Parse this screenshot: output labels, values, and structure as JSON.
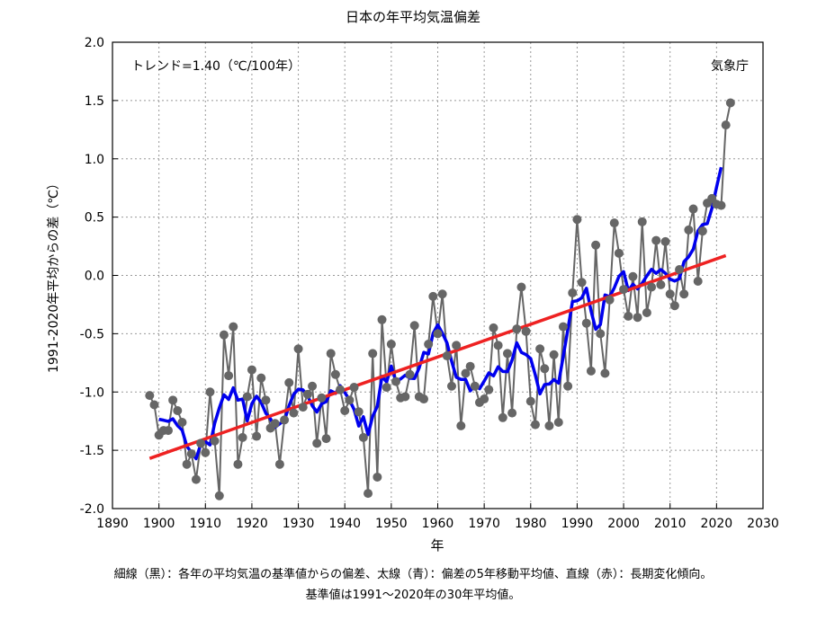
{
  "chart_data": {
    "type": "line",
    "title": "日本の年平均気温偏差",
    "xlabel": "年",
    "ylabel": "1991-2020年平均からの差（℃）",
    "xlim": [
      1890,
      2030
    ],
    "ylim": [
      -2.0,
      2.0
    ],
    "x_ticks": [
      "1890",
      "1900",
      "1910",
      "1920",
      "1930",
      "1940",
      "1950",
      "1960",
      "1970",
      "1980",
      "1990",
      "2000",
      "2010",
      "2020",
      "2030"
    ],
    "y_ticks": [
      "-2.0",
      "-1.5",
      "-1.0",
      "-0.5",
      "0.0",
      "0.5",
      "1.0",
      "1.5",
      "2.0"
    ],
    "grid": true,
    "annotations": {
      "trend": "トレンド=1.40（℃/100年）",
      "source": "気象庁"
    },
    "captions": [
      "細線（黒）：各年の平均気温の基準値からの偏差、太線（青）：偏差の5年移動平均値、直線（赤）：長期変化傾向。",
      "基準値は1991〜2020年の30年平均値。"
    ],
    "start_year": 1898,
    "series": [
      {
        "name": "年平均気温偏差",
        "color": "#666666",
        "values": [
          -1.03,
          -1.11,
          -1.37,
          -1.33,
          -1.33,
          -1.07,
          -1.16,
          -1.26,
          -1.62,
          -1.53,
          -1.75,
          -1.44,
          -1.52,
          -1.0,
          -1.42,
          -1.89,
          -0.51,
          -0.86,
          -0.44,
          -1.62,
          -1.39,
          -1.04,
          -0.81,
          -1.38,
          -0.88,
          -1.07,
          -1.31,
          -1.27,
          -1.62,
          -1.24,
          -0.92,
          -1.18,
          -0.63,
          -1.13,
          -1.02,
          -0.95,
          -1.44,
          -1.05,
          -1.4,
          -0.67,
          -0.85,
          -0.98,
          -1.16,
          -1.07,
          -0.96,
          -1.17,
          -1.39,
          -1.87,
          -0.67,
          -1.73,
          -0.38,
          -0.96,
          -0.59,
          -0.91,
          -1.05,
          -1.04,
          -0.85,
          -0.43,
          -1.04,
          -1.06,
          -0.59,
          -0.18,
          -0.5,
          -0.16,
          -0.69,
          -0.95,
          -0.6,
          -1.29,
          -0.84,
          -0.78,
          -0.95,
          -1.09,
          -1.06,
          -0.98,
          -0.45,
          -0.6,
          -1.22,
          -0.67,
          -1.18,
          -0.46,
          -0.1,
          -0.48,
          -1.08,
          -1.28,
          -0.63,
          -0.8,
          -1.29,
          -0.68,
          -1.26,
          -0.44,
          -0.95,
          -0.15,
          0.48,
          -0.06,
          -0.41,
          -0.82,
          0.26,
          -0.5,
          -0.84,
          -0.21,
          0.45,
          0.19,
          -0.12,
          -0.35,
          -0.01,
          -0.36,
          0.46,
          -0.32,
          -0.1,
          0.3,
          -0.08,
          0.29,
          -0.16,
          -0.26,
          0.05,
          -0.16,
          0.39,
          0.57,
          -0.05,
          0.38,
          0.62,
          0.66,
          0.61,
          0.6,
          1.29,
          1.48
        ]
      },
      {
        "name": "5年移動平均",
        "color": "#0000ee",
        "window": 5
      },
      {
        "name": "長期変化傾向",
        "color": "#ee2222",
        "start": [
          1898,
          -1.57
        ],
        "end": [
          2022,
          0.17
        ]
      }
    ]
  }
}
